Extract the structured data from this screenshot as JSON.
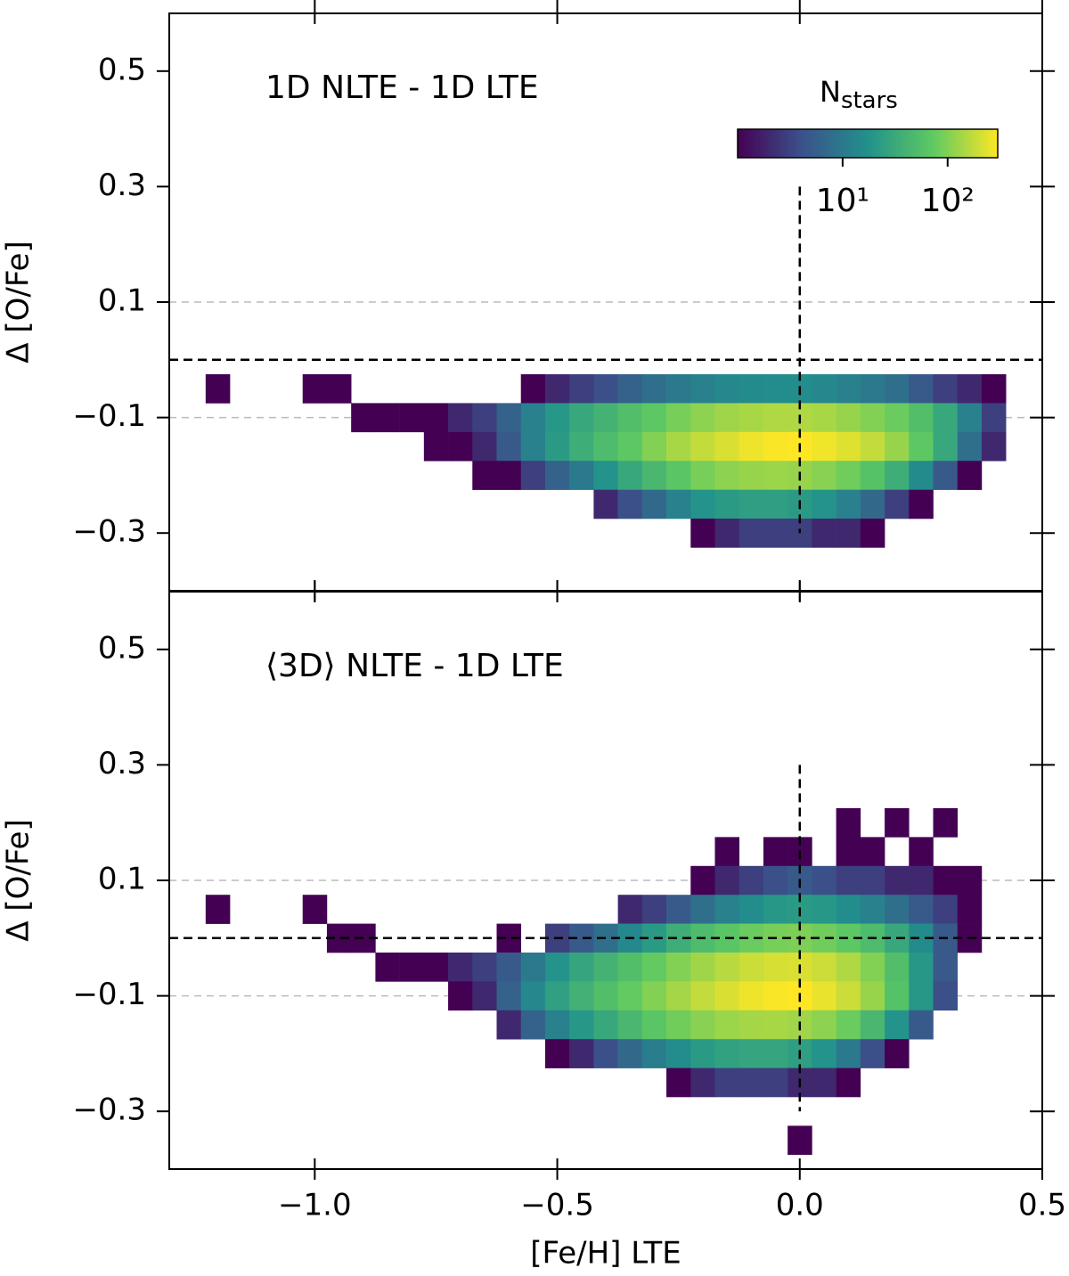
{
  "chart_data": [
    {
      "type": "heatmap",
      "annotation": "1D NLTE - 1D LTE",
      "ylabel": "Δ [O/Fe]",
      "xlim": [
        -1.3,
        0.5
      ],
      "ylim": [
        -0.4,
        0.6
      ],
      "xticks": [
        {
          "value": -1.0,
          "label": "−1.0"
        },
        {
          "value": -0.5,
          "label": "−0.5"
        },
        {
          "value": 0.0,
          "label": "0.0"
        },
        0.5
      ],
      "yticks": [
        0.5,
        0.3,
        0.1,
        {
          "value": -0.1,
          "label": "−0.1"
        },
        {
          "value": -0.3,
          "label": "−0.3"
        }
      ],
      "grid_y": [
        0.1,
        -0.1
      ],
      "hline": 0,
      "vline": {
        "x": 0,
        "ymin": -0.3,
        "ymax": 0.3
      },
      "x": [
        -1.2,
        -1.15,
        -1.1,
        -1.05,
        -1.0,
        -0.95,
        -0.9,
        -0.85,
        -0.8,
        -0.75,
        -0.7,
        -0.65,
        -0.6,
        -0.55,
        -0.5,
        -0.45,
        -0.4,
        -0.35,
        -0.3,
        -0.25,
        -0.2,
        -0.15,
        -0.1,
        -0.05,
        0.0,
        0.05,
        0.1,
        0.15,
        0.2,
        0.25,
        0.3,
        0.35,
        0.4
      ],
      "y": [
        -0.05,
        -0.1,
        -0.15,
        -0.2,
        -0.25,
        -0.3
      ],
      "values": [
        [
          1,
          null,
          null,
          null,
          1,
          1,
          null,
          null,
          null,
          null,
          null,
          null,
          null,
          1,
          2,
          3,
          4,
          6,
          8,
          10,
          12,
          14,
          15,
          16,
          16,
          14,
          12,
          10,
          8,
          5,
          3,
          2,
          1
        ],
        [
          null,
          null,
          null,
          null,
          null,
          null,
          1,
          1,
          1,
          1,
          2,
          3,
          6,
          12,
          20,
          30,
          40,
          55,
          70,
          90,
          110,
          130,
          140,
          150,
          150,
          140,
          120,
          100,
          80,
          55,
          30,
          12,
          3
        ],
        [
          null,
          null,
          null,
          null,
          null,
          null,
          null,
          null,
          null,
          1,
          1,
          2,
          5,
          12,
          22,
          35,
          50,
          70,
          100,
          140,
          180,
          220,
          260,
          290,
          300,
          270,
          230,
          180,
          120,
          70,
          30,
          8,
          2
        ],
        [
          null,
          null,
          null,
          null,
          null,
          null,
          null,
          null,
          null,
          null,
          null,
          1,
          1,
          3,
          6,
          10,
          18,
          30,
          45,
          65,
          90,
          110,
          120,
          125,
          120,
          105,
          85,
          60,
          35,
          15,
          5,
          1,
          null
        ],
        [
          null,
          null,
          null,
          null,
          null,
          null,
          null,
          null,
          null,
          null,
          null,
          null,
          null,
          null,
          null,
          null,
          2,
          4,
          7,
          12,
          18,
          22,
          24,
          24,
          22,
          18,
          12,
          7,
          3,
          1,
          null,
          null,
          null
        ],
        [
          null,
          null,
          null,
          null,
          null,
          null,
          null,
          null,
          null,
          null,
          null,
          null,
          null,
          null,
          null,
          null,
          null,
          null,
          null,
          null,
          1,
          2,
          3,
          3,
          3,
          2,
          2,
          1,
          null,
          null,
          null,
          null,
          null
        ]
      ],
      "colorbar": {
        "label": "N",
        "label_sub": "stars",
        "lim": [
          1,
          300
        ],
        "log": true,
        "ticks": [
          {
            "value": 10,
            "label": "10¹"
          },
          {
            "value": 100,
            "label": "10²"
          }
        ]
      }
    },
    {
      "type": "heatmap",
      "annotation": "⟨3D⟩ NLTE - 1D LTE",
      "ylabel": "Δ [O/Fe]",
      "xlabel": "[Fe/H] LTE",
      "xlim": [
        -1.3,
        0.5
      ],
      "ylim": [
        -0.4,
        0.6
      ],
      "xticks": [
        {
          "value": -1.0,
          "label": "−1.0"
        },
        {
          "value": -0.5,
          "label": "−0.5"
        },
        {
          "value": 0.0,
          "label": "0.0"
        },
        0.5
      ],
      "yticks": [
        0.5,
        0.3,
        0.1,
        {
          "value": -0.1,
          "label": "−0.1"
        },
        {
          "value": -0.3,
          "label": "−0.3"
        }
      ],
      "grid_y": [
        0.1,
        -0.1
      ],
      "hline": 0,
      "vline": {
        "x": 0,
        "ymin": -0.3,
        "ymax": 0.3
      },
      "x": [
        -1.2,
        -1.15,
        -1.1,
        -1.05,
        -1.0,
        -0.95,
        -0.9,
        -0.85,
        -0.8,
        -0.75,
        -0.7,
        -0.65,
        -0.6,
        -0.55,
        -0.5,
        -0.45,
        -0.4,
        -0.35,
        -0.3,
        -0.25,
        -0.2,
        -0.15,
        -0.1,
        -0.05,
        0.0,
        0.05,
        0.1,
        0.15,
        0.2,
        0.25,
        0.3,
        0.35,
        0.4
      ],
      "y": [
        0.2,
        0.15,
        0.1,
        0.05,
        0.0,
        -0.05,
        -0.1,
        -0.15,
        -0.2,
        -0.25,
        -0.35
      ],
      "values": [
        [
          null,
          null,
          null,
          null,
          null,
          null,
          null,
          null,
          null,
          null,
          null,
          null,
          null,
          null,
          null,
          null,
          null,
          null,
          null,
          null,
          null,
          null,
          null,
          null,
          null,
          null,
          1,
          null,
          1,
          null,
          1,
          null,
          null
        ],
        [
          null,
          null,
          null,
          null,
          null,
          null,
          null,
          null,
          null,
          null,
          null,
          null,
          null,
          null,
          null,
          null,
          null,
          null,
          null,
          null,
          null,
          1,
          null,
          1,
          1,
          null,
          1,
          1,
          null,
          1,
          null,
          null,
          null
        ],
        [
          null,
          null,
          null,
          null,
          null,
          null,
          null,
          null,
          null,
          null,
          null,
          null,
          null,
          null,
          null,
          null,
          null,
          null,
          null,
          null,
          1,
          2,
          3,
          4,
          5,
          4,
          3,
          3,
          2,
          2,
          1,
          1,
          null
        ],
        [
          1,
          null,
          null,
          null,
          1,
          null,
          null,
          null,
          null,
          null,
          null,
          null,
          null,
          null,
          null,
          null,
          null,
          2,
          3,
          5,
          8,
          12,
          16,
          20,
          22,
          20,
          16,
          12,
          8,
          5,
          3,
          1,
          null
        ],
        [
          null,
          null,
          null,
          null,
          null,
          1,
          1,
          null,
          null,
          null,
          null,
          null,
          1,
          null,
          3,
          5,
          8,
          14,
          22,
          35,
          50,
          65,
          80,
          90,
          95,
          85,
          70,
          50,
          30,
          15,
          5,
          1,
          null
        ],
        [
          null,
          null,
          null,
          null,
          null,
          null,
          null,
          1,
          1,
          1,
          2,
          3,
          5,
          10,
          18,
          28,
          40,
          55,
          75,
          100,
          130,
          160,
          190,
          210,
          220,
          190,
          150,
          100,
          55,
          20,
          5,
          null,
          null
        ],
        [
          null,
          null,
          null,
          null,
          null,
          null,
          null,
          null,
          null,
          null,
          1,
          2,
          6,
          14,
          25,
          38,
          55,
          75,
          100,
          135,
          175,
          220,
          260,
          290,
          300,
          250,
          190,
          120,
          60,
          20,
          4,
          null,
          null
        ],
        [
          null,
          null,
          null,
          null,
          null,
          null,
          null,
          null,
          null,
          null,
          null,
          null,
          2,
          6,
          12,
          20,
          30,
          45,
          65,
          85,
          105,
          125,
          135,
          140,
          130,
          110,
          80,
          45,
          18,
          5,
          null,
          null,
          null
        ],
        [
          null,
          null,
          null,
          null,
          null,
          null,
          null,
          null,
          null,
          null,
          null,
          null,
          null,
          null,
          1,
          2,
          4,
          7,
          11,
          16,
          22,
          26,
          28,
          28,
          24,
          18,
          10,
          4,
          1,
          null,
          null,
          null,
          null
        ],
        [
          null,
          null,
          null,
          null,
          null,
          null,
          null,
          null,
          null,
          null,
          null,
          null,
          null,
          null,
          null,
          null,
          null,
          null,
          null,
          1,
          2,
          3,
          3,
          3,
          2,
          2,
          1,
          null,
          null,
          null,
          null,
          null,
          null
        ],
        [
          null,
          null,
          null,
          null,
          null,
          null,
          null,
          null,
          null,
          null,
          null,
          null,
          null,
          null,
          null,
          null,
          null,
          null,
          null,
          null,
          null,
          null,
          null,
          null,
          1,
          null,
          null,
          null,
          null,
          null,
          null,
          null,
          null
        ]
      ]
    }
  ]
}
